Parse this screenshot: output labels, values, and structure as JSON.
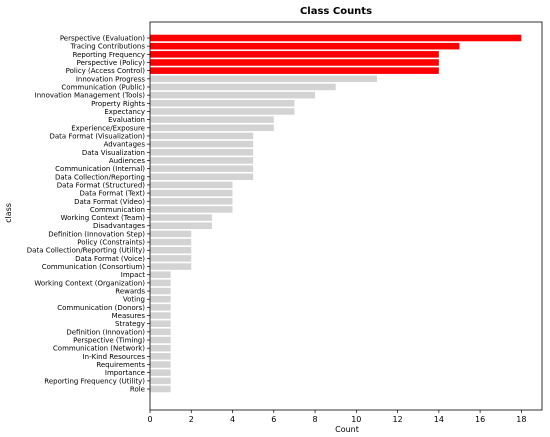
{
  "chart_data": {
    "type": "bar",
    "orientation": "horizontal",
    "title": "Class Counts",
    "xlabel": "Count",
    "ylabel": "class",
    "xlim": [
      0,
      19
    ],
    "xticks": [
      0,
      2,
      4,
      6,
      8,
      10,
      12,
      14,
      16,
      18
    ],
    "grid": false,
    "colors": {
      "highlight": "#ff0000",
      "default": "#d3d3d3"
    },
    "highlight_top_n": 5,
    "categories": [
      "Perspective (Evaluation)",
      "Tracing Contributions",
      "Reporting Frequency",
      "Perspective (Policy)",
      "Policy (Access Control)",
      "Innovation Progress",
      "Communication (Public)",
      "Innovation Management (Tools)",
      "Property Rights",
      "Expectancy",
      "Evaluation",
      "Experience/Exposure",
      "Data Format (Visualization)",
      "Advantages",
      "Data Visualization",
      "Audiences",
      "Communication (Internal)",
      "Data Collection/Reporting",
      "Data Format (Structured)",
      "Data Format (Text)",
      "Data Format (Video)",
      "Communication",
      "Working Context (Team)",
      "Disadvantages",
      "Definition (Innovation Step)",
      "Policy (Constraints)",
      "Data Collection/Reporting (Utility)",
      "Data Format (Voice)",
      "Communication (Consortium)",
      "Impact",
      "Working Context (Organization)",
      "Rewards",
      "Voting",
      "Communication (Donors)",
      "Measures",
      "Strategy",
      "Definition (Innovation)",
      "Perspective (Timing)",
      "Communication (Network)",
      "In-Kind Resources",
      "Requirements",
      "Importance",
      "Reporting Frequency (Utility)",
      "Role"
    ],
    "values": [
      18,
      15,
      14,
      14,
      14,
      11,
      9,
      8,
      7,
      7,
      6,
      6,
      5,
      5,
      5,
      5,
      5,
      5,
      4,
      4,
      4,
      4,
      3,
      3,
      2,
      2,
      2,
      2,
      2,
      1,
      1,
      1,
      1,
      1,
      1,
      1,
      1,
      1,
      1,
      1,
      1,
      1,
      1,
      1
    ]
  }
}
